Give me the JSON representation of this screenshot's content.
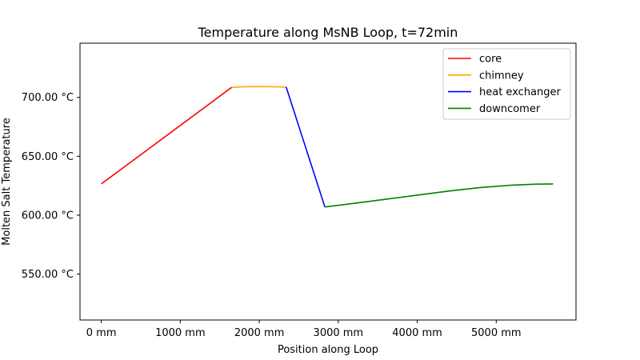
{
  "chart_data": {
    "type": "line",
    "title": "Temperature along MsNB Loop, t=72min",
    "xlabel": "Position along Loop",
    "ylabel": "Molten Salt Temperature",
    "xlim": [
      -270,
      6010
    ],
    "ylim": [
      511,
      746
    ],
    "x_ticks": [
      {
        "value": 0,
        "label": "0 mm"
      },
      {
        "value": 1000,
        "label": "1000 mm"
      },
      {
        "value": 2000,
        "label": "2000 mm"
      },
      {
        "value": 3000,
        "label": "3000 mm"
      },
      {
        "value": 4000,
        "label": "4000 mm"
      },
      {
        "value": 5000,
        "label": "5000 mm"
      }
    ],
    "y_ticks": [
      {
        "value": 550,
        "label": "550.00 °C"
      },
      {
        "value": 600,
        "label": "600.00 °C"
      },
      {
        "value": 650,
        "label": "650.00 °C"
      },
      {
        "value": 700,
        "label": "700.00 °C"
      }
    ],
    "grid": false,
    "legend_position": "top-right",
    "series": [
      {
        "name": "core",
        "color": "#ff0000",
        "x": [
          0,
          1650
        ],
        "y": [
          626.5,
          708.5
        ]
      },
      {
        "name": "chimney",
        "color": "#ffa500",
        "x": [
          1650,
          1800,
          2000,
          2200,
          2340
        ],
        "y": [
          708.5,
          709.0,
          709.2,
          709.0,
          708.8
        ]
      },
      {
        "name": "heat exchanger",
        "color": "#0000ff",
        "x": [
          2340,
          2830
        ],
        "y": [
          708.8,
          607.0
        ]
      },
      {
        "name": "downcomer",
        "color": "#008000",
        "x": [
          2830,
          3200,
          3600,
          4000,
          4400,
          4800,
          5200,
          5500,
          5720
        ],
        "y": [
          607.0,
          610.0,
          613.5,
          617.0,
          620.5,
          623.5,
          625.5,
          626.3,
          626.5
        ]
      }
    ]
  }
}
